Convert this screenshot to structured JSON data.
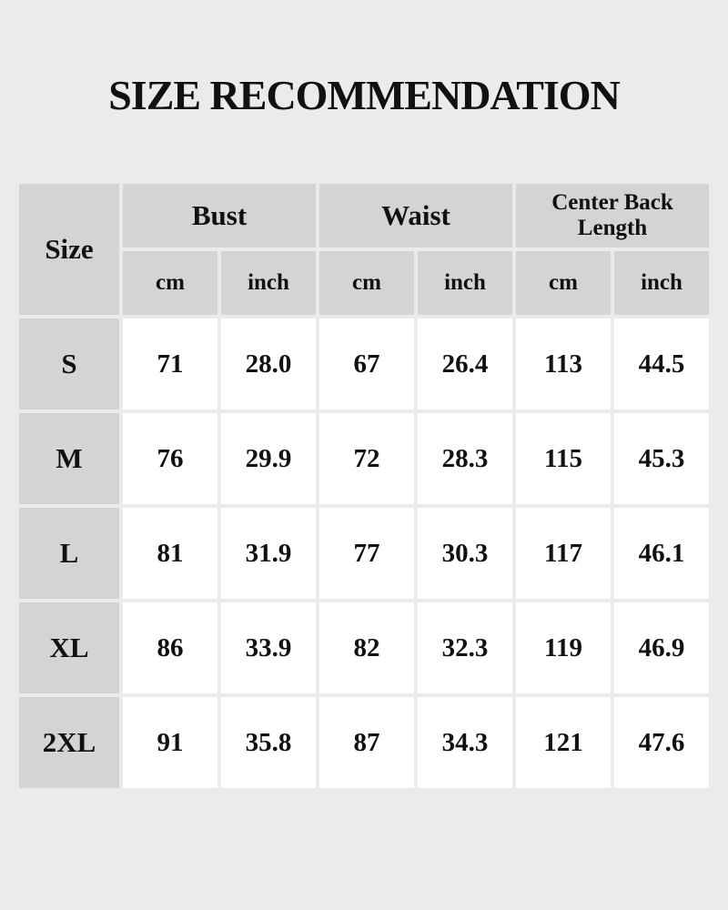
{
  "title": "SIZE RECOMMENDATION",
  "colors": {
    "background": "#ebebeb",
    "header_cell": "#d4d4d4",
    "data_cell": "#ffffff",
    "text": "#111111"
  },
  "table": {
    "size_header": "Size",
    "groups": [
      "Bust",
      "Waist",
      "Center Back Length"
    ],
    "units": [
      "cm",
      "inch",
      "cm",
      "inch",
      "cm",
      "inch"
    ],
    "rows": [
      {
        "size": "S",
        "values": [
          "71",
          "28.0",
          "67",
          "26.4",
          "113",
          "44.5"
        ]
      },
      {
        "size": "M",
        "values": [
          "76",
          "29.9",
          "72",
          "28.3",
          "115",
          "45.3"
        ]
      },
      {
        "size": "L",
        "values": [
          "81",
          "31.9",
          "77",
          "30.3",
          "117",
          "46.1"
        ]
      },
      {
        "size": "XL",
        "values": [
          "86",
          "33.9",
          "82",
          "32.3",
          "119",
          "46.9"
        ]
      },
      {
        "size": "2XL",
        "values": [
          "91",
          "35.8",
          "87",
          "34.3",
          "121",
          "47.6"
        ]
      }
    ]
  }
}
